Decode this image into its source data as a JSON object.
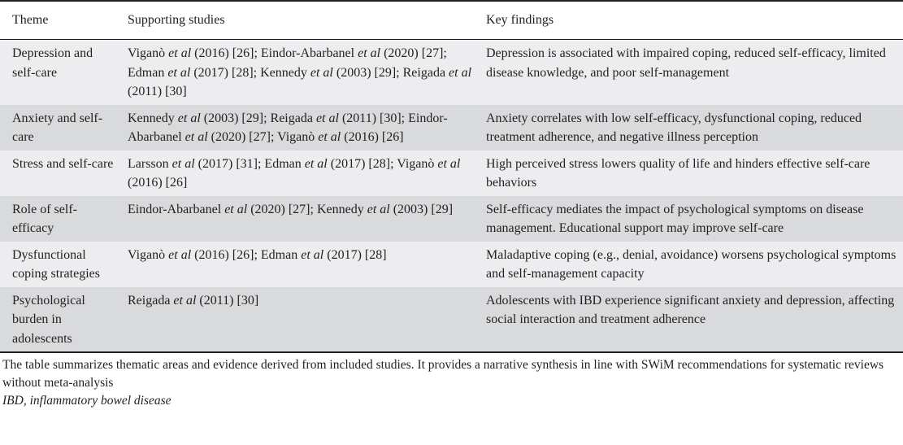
{
  "table": {
    "headers": [
      "Theme",
      "Supporting studies",
      "Key findings"
    ],
    "rows": [
      {
        "theme": "Depression and self-care",
        "studies": [
          {
            "author": "Viganò",
            "etal": "et al",
            "rest": "(2016) [26]"
          },
          {
            "author": "Eindor-Abarbanel",
            "etal": "et al",
            "rest": "(2020) [27]"
          },
          {
            "author": "Edman",
            "etal": "et al",
            "rest": "(2017) [28]"
          },
          {
            "author": "Kennedy",
            "etal": "et al",
            "rest": "(2003) [29]"
          },
          {
            "author": "Reigada",
            "etal": "et al",
            "rest": "(2011) [30]"
          }
        ],
        "findings": "Depression is associated with impaired coping, reduced self-efficacy, limited disease knowledge, and poor self-management"
      },
      {
        "theme": "Anxiety and self-care",
        "studies": [
          {
            "author": "Kennedy",
            "etal": "et al",
            "rest": "(2003) [29]"
          },
          {
            "author": "Reigada",
            "etal": "et al",
            "rest": "(2011) [30]"
          },
          {
            "author": "Eindor-Abarbanel",
            "etal": "et al",
            "rest": "(2020) [27]"
          },
          {
            "author": "Viganò",
            "etal": "et al",
            "rest": "(2016) [26]"
          }
        ],
        "findings": "Anxiety correlates with low self-efficacy, dysfunctional coping, reduced treatment adherence, and negative illness perception"
      },
      {
        "theme": "Stress and self-care",
        "studies": [
          {
            "author": "Larsson",
            "etal": "et al",
            "rest": "(2017) [31]"
          },
          {
            "author": "Edman",
            "etal": "et al",
            "rest": "(2017) [28]"
          },
          {
            "author": "Viganò",
            "etal": "et al",
            "rest": "(2016) [26]"
          }
        ],
        "findings": "High perceived stress lowers quality of life and hinders effective self-care behaviors"
      },
      {
        "theme": "Role of self-efficacy",
        "studies": [
          {
            "author": "Eindor-Abarbanel",
            "etal": "et al",
            "rest": "(2020) [27]"
          },
          {
            "author": "Kennedy",
            "etal": "et al",
            "rest": "(2003) [29]"
          }
        ],
        "findings": "Self-efficacy mediates the impact of psychological symptoms on disease management. Educational support may improve self-care"
      },
      {
        "theme": "Dysfunctional coping strategies",
        "studies": [
          {
            "author": "Viganò",
            "etal": "et al",
            "rest": "(2016) [26]"
          },
          {
            "author": "Edman",
            "etal": "et al",
            "rest": "(2017) [28]"
          }
        ],
        "findings": "Maladaptive coping (e.g., denial, avoidance) worsens psychological symptoms and self-management capacity"
      },
      {
        "theme": "Psychological burden in adolescents",
        "studies": [
          {
            "author": "Reigada",
            "etal": "et al",
            "rest": "(2011) [30]"
          }
        ],
        "findings": "Adolescents with IBD experience significant anxiety and depression, affecting social interaction and treatment adherence"
      }
    ]
  },
  "footer": {
    "note": "The table summarizes thematic areas and evidence derived from included studies. It provides a narrative synthesis in line with SWiM recommendations for systematic reviews without meta-analysis",
    "abbreviation_term": "IBD",
    "abbreviation_def": ", inflammatory bowel disease"
  },
  "colors": {
    "row_light": "#ededef",
    "row_dark": "#d9dadc",
    "text": "#231f20"
  }
}
